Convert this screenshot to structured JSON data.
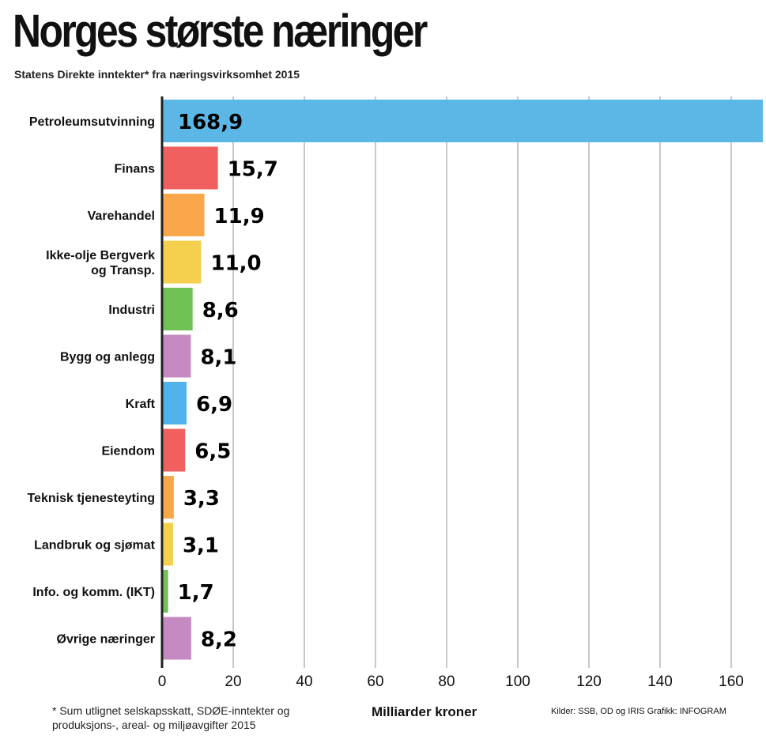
{
  "title": "Norges største næringer",
  "subtitle": "Statens Direkte inntekter* fra næringsvirksomhet 2015",
  "footnote": "* Sum utlignet selskapsskatt, SDØE-inntekter og produksjons-, areal- og miljøavgifter 2015",
  "sources": "Kilder: SSB, OD og IRIS     Grafikk: INFOGRAM",
  "chart_data": {
    "type": "bar",
    "orientation": "horizontal",
    "title": "Norges største næringer",
    "subtitle": "Statens Direkte inntekter* fra næringsvirksomhet 2015",
    "xlabel": "Milliarder kroner",
    "ylabel": "",
    "xlim": [
      0,
      170
    ],
    "grid": true,
    "categories": [
      [
        "Petroleumsutvinning"
      ],
      [
        "Finans"
      ],
      [
        "Varehandel"
      ],
      [
        "Ikke-olje Bergverk",
        "og Transp."
      ],
      [
        "Industri"
      ],
      [
        "Bygg og anlegg"
      ],
      [
        "Kraft"
      ],
      [
        "Eiendom"
      ],
      [
        "Teknisk tjenesteyting"
      ],
      [
        "Landbruk og sjømat"
      ],
      [
        "Info. og komm. (IKT)"
      ],
      [
        "Øvrige næringer"
      ]
    ],
    "values": [
      168.9,
      15.7,
      11.9,
      11.0,
      8.6,
      8.1,
      6.9,
      6.5,
      3.3,
      3.1,
      1.7,
      8.2
    ],
    "value_labels": [
      "168,9",
      "15,7",
      "11,9",
      "11,0",
      "8,6",
      "8,1",
      "6,9",
      "6,5",
      "3,3",
      "3,1",
      "1,7",
      "8,2"
    ],
    "colors": [
      "#5bb8e6",
      "#f0605e",
      "#f9a74a",
      "#f5d04e",
      "#72c155",
      "#c68ac2",
      "#4fb2ea",
      "#f0605e",
      "#f9a74a",
      "#f5d04e",
      "#72c155",
      "#c68ac2"
    ],
    "ticks": [
      0,
      20,
      40,
      60,
      80,
      100,
      120,
      140,
      160
    ],
    "tick_labels": [
      "0",
      "20",
      "40",
      "60",
      "80",
      "100",
      "120",
      "140",
      "160"
    ]
  }
}
